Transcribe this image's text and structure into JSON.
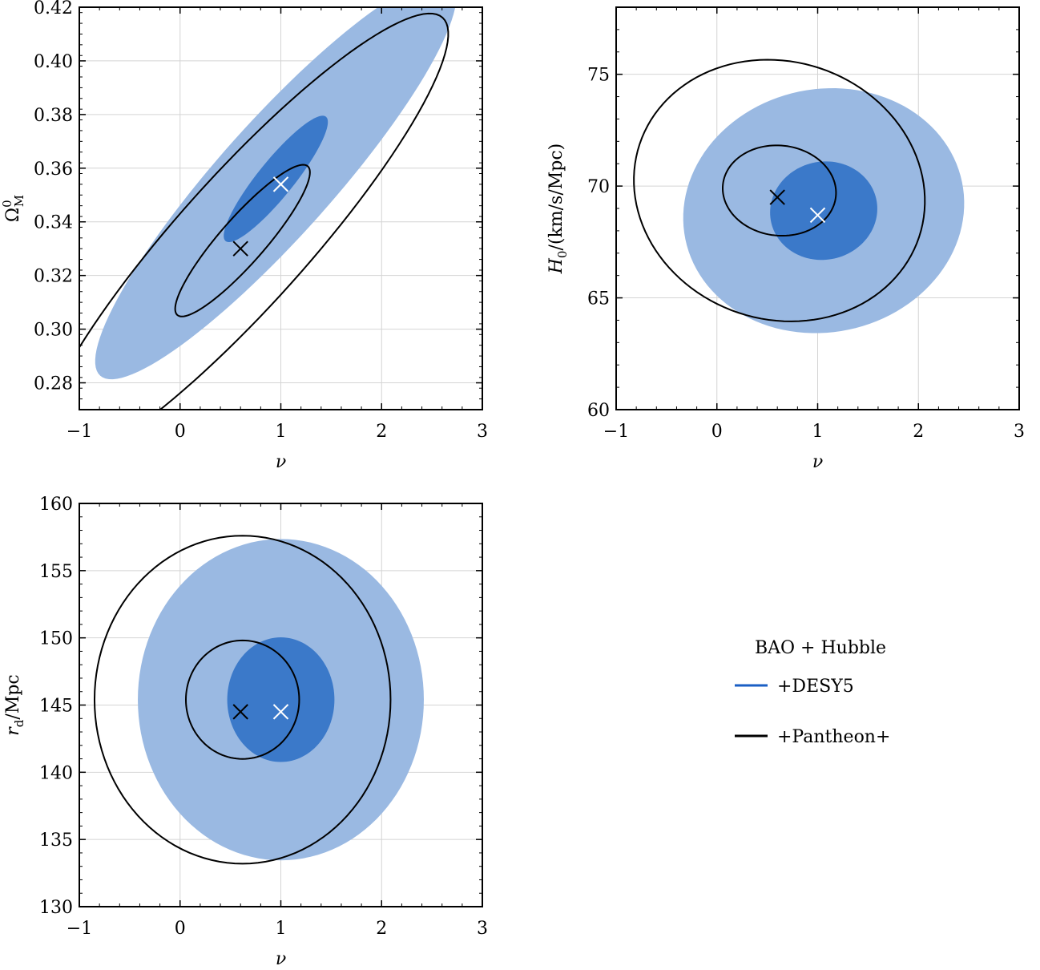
{
  "colors": {
    "desy5_outer": "#9ab9e2",
    "desy5_inner": "#3b79c9",
    "desy5_legend": "#1a5fc4",
    "pantheon": "#000000",
    "desy5_marker": "#ffffff",
    "pantheon_marker": "#000000",
    "grid": "#d4d4d4"
  },
  "legend": {
    "title": "BAO + Hubble",
    "entries": [
      {
        "label": "+DESY5",
        "color_key": "desy5_legend"
      },
      {
        "label": "+Pantheon+",
        "color_key": "pantheon"
      }
    ],
    "placement": "lower-right panel area"
  },
  "chart_data": [
    {
      "type": "scatter",
      "id": "omega-panel",
      "xlabel": "ν",
      "ylabel_base": "Ω",
      "ylabel_sup": "0",
      "ylabel_sub": "M",
      "xlim": [
        -1,
        3
      ],
      "ylim": [
        0.27,
        0.42
      ],
      "xticks": [
        -1,
        0,
        1,
        2,
        3
      ],
      "xtick_labels": [
        "−1",
        "0",
        "1",
        "2",
        "3"
      ],
      "yticks": [
        0.28,
        0.3,
        0.32,
        0.34,
        0.36,
        0.38,
        0.4,
        0.42
      ],
      "ytick_labels": [
        "0.28",
        "0.30",
        "0.32",
        "0.34",
        "0.36",
        "0.38",
        "0.40",
        "0.42"
      ],
      "grid": true,
      "best_fit": {
        "desy5": [
          1.0,
          0.354
        ],
        "pantheon": [
          0.6,
          0.33
        ]
      },
      "contours": {
        "desy5": {
          "center": [
            0.95,
            0.356
          ],
          "outer": {
            "sx": 0.72,
            "sy": 0.03,
            "rho": 0.91
          },
          "inner": {
            "sx": 0.34,
            "sy": 0.0155,
            "rho": 0.9
          }
        },
        "pantheon": {
          "center": [
            0.62,
            0.333
          ],
          "outer": {
            "sx": 0.82,
            "sy": 0.034,
            "rho": 0.91
          },
          "inner": {
            "sx": 0.44,
            "sy": 0.0186,
            "rho": 0.9
          }
        }
      }
    },
    {
      "type": "scatter",
      "id": "h0-panel",
      "xlabel": "ν",
      "ylabel_base": "H",
      "ylabel_sub": "0",
      "ylabel_rest": "/(km/s/Mpc)",
      "xlim": [
        -1,
        3
      ],
      "ylim": [
        60,
        78
      ],
      "xticks": [
        -1,
        0,
        1,
        2,
        3
      ],
      "xtick_labels": [
        "−1",
        "0",
        "1",
        "2",
        "3"
      ],
      "yticks": [
        60,
        65,
        70,
        75
      ],
      "ytick_labels": [
        "60",
        "65",
        "70",
        "75"
      ],
      "grid": true,
      "best_fit": {
        "desy5": [
          1.0,
          68.7
        ],
        "pantheon": [
          0.6,
          69.5
        ]
      },
      "contours": {
        "desy5": {
          "center": [
            1.06,
            68.9
          ],
          "outer": {
            "sx": 0.56,
            "sy": 2.2,
            "rho": 0.06
          },
          "inner": {
            "sx": 0.35,
            "sy": 1.45,
            "rho": 0.04
          }
        },
        "pantheon": {
          "center": [
            0.62,
            69.8
          ],
          "outer": {
            "sx": 0.58,
            "sy": 2.35,
            "rho": -0.08
          },
          "inner": {
            "sx": 0.37,
            "sy": 1.33,
            "rho": -0.05
          }
        }
      }
    },
    {
      "type": "scatter",
      "id": "rd-panel",
      "xlabel": "ν",
      "ylabel_base": "r",
      "ylabel_sub": "d",
      "ylabel_rest": "/Mpc",
      "xlim": [
        -1,
        3
      ],
      "ylim": [
        130,
        160
      ],
      "xticks": [
        -1,
        0,
        1,
        2,
        3
      ],
      "xtick_labels": [
        "−1",
        "0",
        "1",
        "2",
        "3"
      ],
      "yticks": [
        130,
        135,
        140,
        145,
        150,
        155,
        160
      ],
      "ytick_labels": [
        "130",
        "135",
        "140",
        "145",
        "150",
        "155",
        "160"
      ],
      "grid": true,
      "best_fit": {
        "desy5": [
          1.0,
          144.5
        ],
        "pantheon": [
          0.6,
          144.5
        ]
      },
      "contours": {
        "desy5": {
          "center": [
            1.0,
            145.4
          ],
          "outer": {
            "sx": 0.57,
            "sy": 4.8,
            "rho": 0.0
          },
          "inner": {
            "sx": 0.35,
            "sy": 3.05,
            "rho": 0.0
          }
        },
        "pantheon": {
          "center": [
            0.62,
            145.4
          ],
          "outer": {
            "sx": 0.59,
            "sy": 4.9,
            "rho": 0.0
          },
          "inner": {
            "sx": 0.37,
            "sy": 2.9,
            "rho": 0.0
          }
        }
      }
    }
  ]
}
